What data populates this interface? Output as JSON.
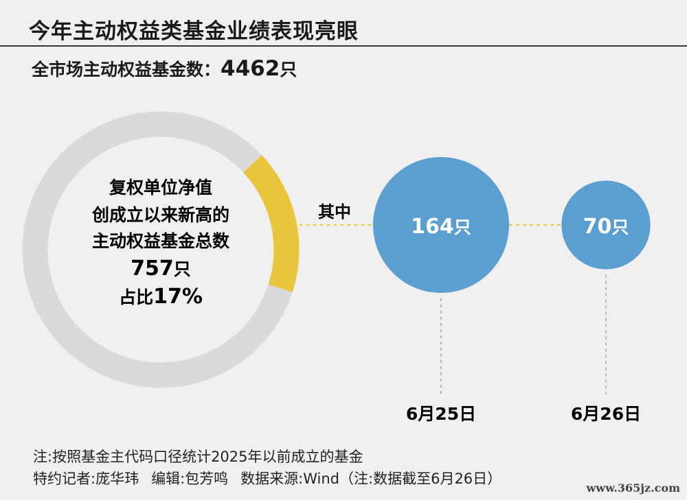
{
  "title": "今年主动权益类基金业绩表现亮眼",
  "total": {
    "label": "全市场主动权益基金数：",
    "value": "4462",
    "unit": "只"
  },
  "chart_data": {
    "type": "donut",
    "total": 4462,
    "highlight_value": 757,
    "highlight_share": 0.17,
    "colors": {
      "ring": "#dadada",
      "highlight": "#e8c53a",
      "bubble": "#5a9fd0",
      "dashes": "#e8c53a",
      "drops": "#b5b5b5"
    },
    "center_text": [
      "复权单位净值",
      "创成立以来新高的",
      "主动权益基金总数"
    ],
    "center_value": "757",
    "center_unit": "只",
    "center_share_prefix": "占比",
    "center_share": "17%",
    "breakdown_label": "其中",
    "bubbles": [
      {
        "value": 164,
        "value_label": "164",
        "unit": "只",
        "date": "6月25日"
      },
      {
        "value": 70,
        "value_label": "70",
        "unit": "只",
        "date": "6月26日"
      }
    ]
  },
  "notes": {
    "line1": "注:按照基金主代码口径统计2025年以前成立的基金",
    "reporter": "特约记者:庞华玮",
    "editor": "编辑:包芳鸣",
    "source": "数据来源:Wind（注:数据截至6月26日）"
  },
  "watermark": "www.365jz.com"
}
